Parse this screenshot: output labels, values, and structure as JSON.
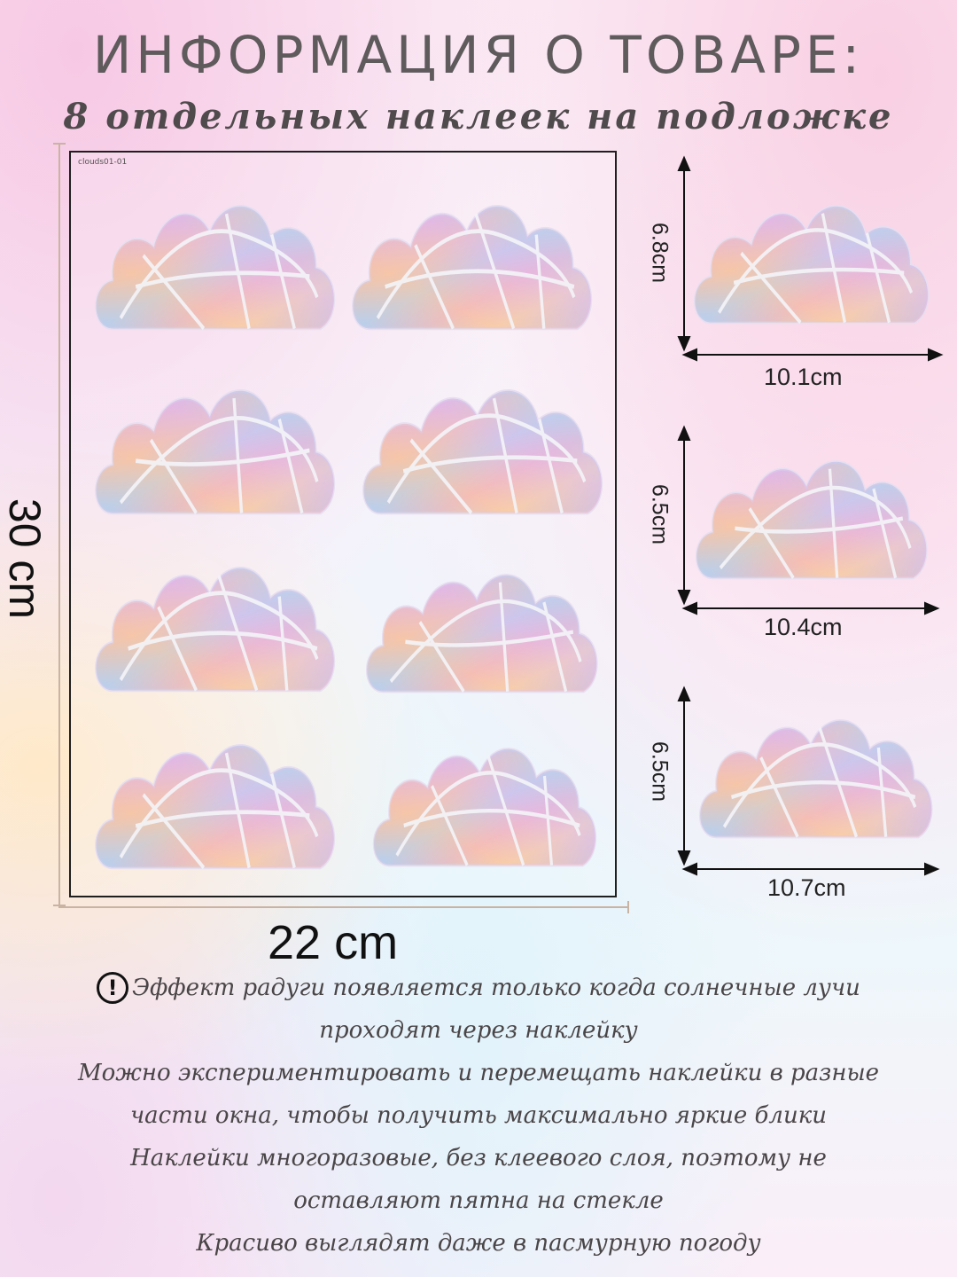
{
  "header": {
    "title": "ИНФОРМАЦИЯ О ТОВАРЕ:",
    "subtitle": "8 отдельных наклеек на подложке"
  },
  "sheet": {
    "code": "clouds01-01",
    "height_label": "30 cm",
    "width_label": "22 cm"
  },
  "sizes": [
    {
      "height": "6.8cm",
      "width": "10.1cm"
    },
    {
      "height": "6.5cm",
      "width": "10.4cm"
    },
    {
      "height": "6.5cm",
      "width": "10.7cm"
    }
  ],
  "notes": [
    "Эффект радуги появляется только когда солнечные лучи",
    "проходят через наклейку",
    "Можно экспериментировать и перемещать наклейки в разные",
    "части окна, чтобы получить максимально яркие блики",
    "Наклейки многоразовые, без клеевого слоя, поэтому не",
    "оставляют пятна на стекле",
    "Красиво выглядят даже в пасмурную погоду"
  ],
  "icons": {
    "warning": "exclamation-circle-icon"
  },
  "colors": {
    "dimension_lines": "#c9b3a2",
    "text": "#4a4547"
  }
}
